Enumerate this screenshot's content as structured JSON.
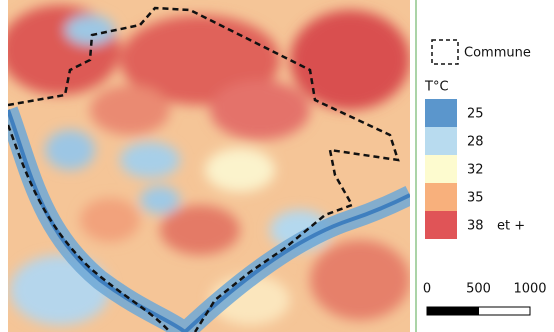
{
  "legend": {
    "boundary_label": "Commune",
    "unit": "T°C",
    "classes": [
      {
        "label": "25",
        "color": "#5b96cc"
      },
      {
        "label": "28",
        "color": "#b8dbef"
      },
      {
        "label": "32",
        "color": "#fdfbcf"
      },
      {
        "label": "35",
        "color": "#f8b07c"
      },
      {
        "label": "38",
        "color": "#e05457"
      }
    ],
    "last_suffix": "et +"
  },
  "scale_bar": {
    "ticks": [
      0,
      500,
      1000
    ]
  }
}
